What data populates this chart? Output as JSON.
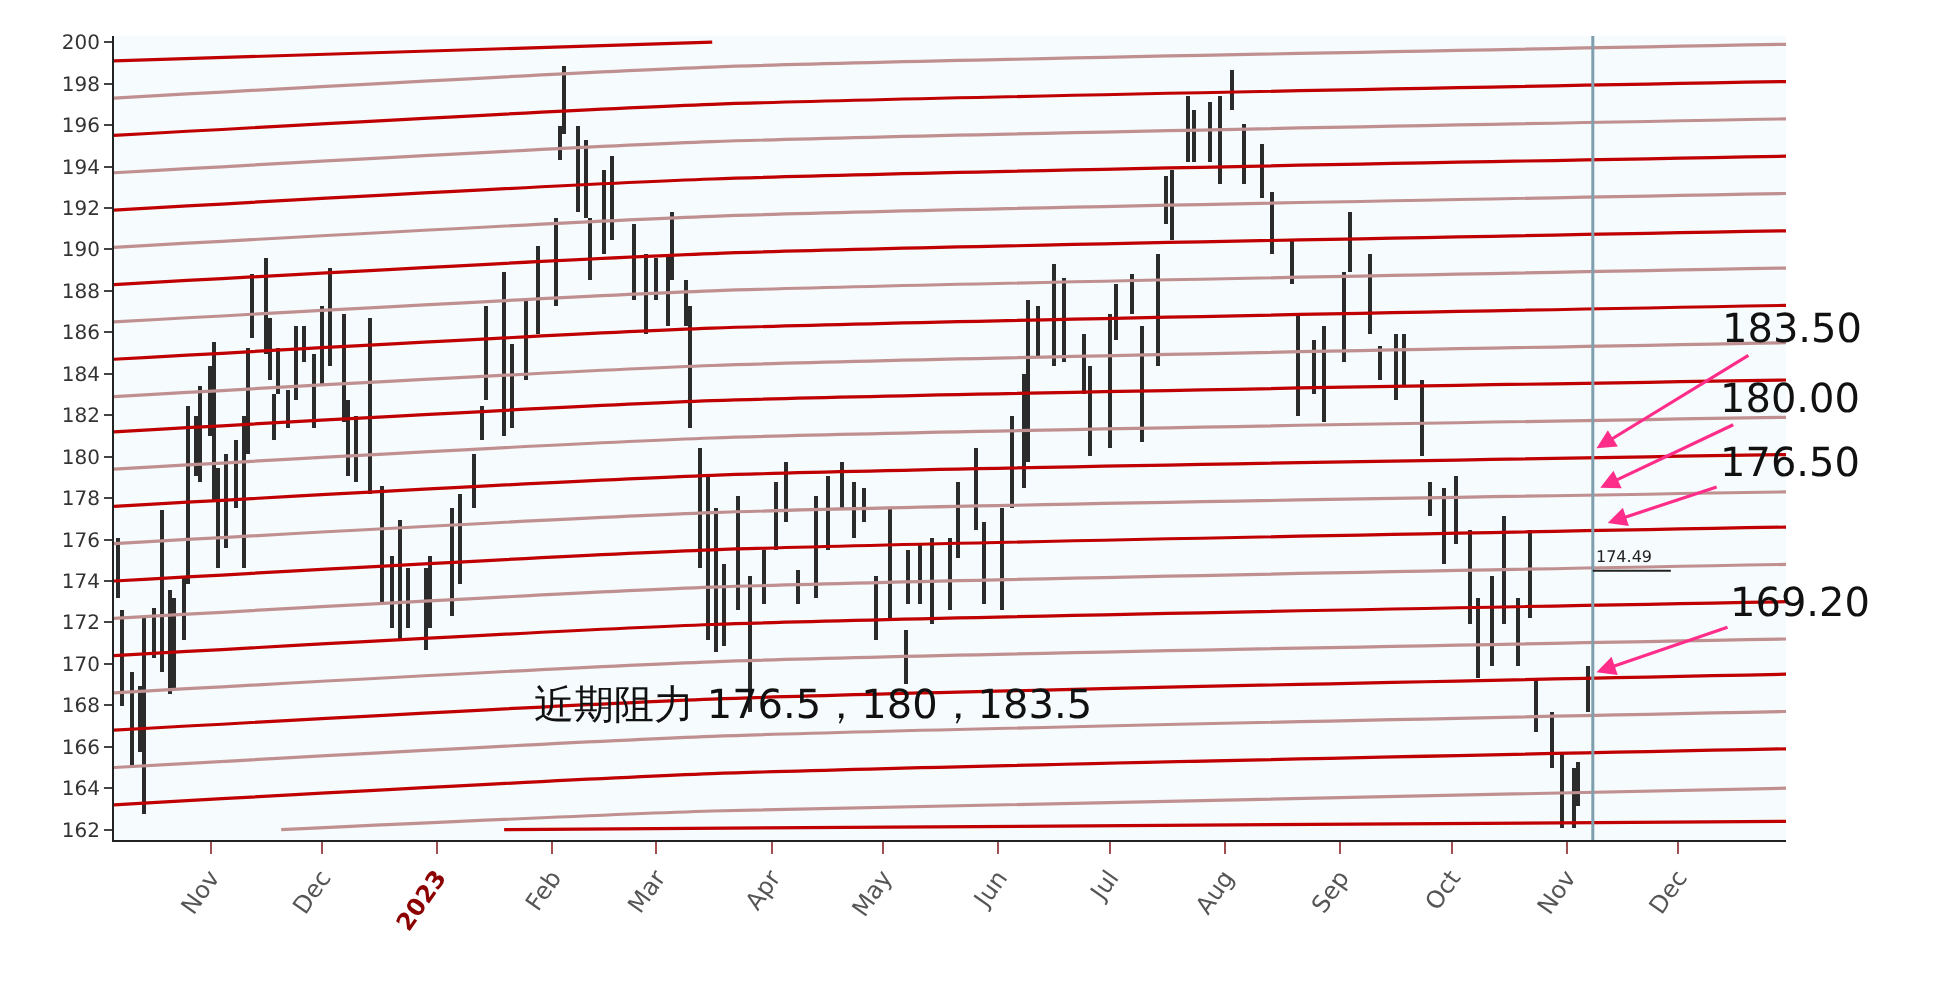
{
  "chart_data": {
    "type": "bar",
    "xlim": [
      "2022-10-06",
      "2023-12-30"
    ],
    "xticks": [
      {
        "value": "2022-11-01",
        "label": "Nov"
      },
      {
        "value": "2022-12-01",
        "label": "Dec"
      },
      {
        "value": "2023-01-01",
        "label": "2023"
      },
      {
        "value": "2023-02-01",
        "label": "Feb"
      },
      {
        "value": "2023-03-01",
        "label": "Mar"
      },
      {
        "value": "2023-04-01",
        "label": "Apr"
      },
      {
        "value": "2023-05-01",
        "label": "May"
      },
      {
        "value": "2023-06-01",
        "label": "Jun"
      },
      {
        "value": "2023-07-01",
        "label": "Jul"
      },
      {
        "value": "2023-08-01",
        "label": "Aug"
      },
      {
        "value": "2023-09-01",
        "label": "Sep"
      },
      {
        "value": "2023-10-01",
        "label": "Oct"
      },
      {
        "value": "2023-11-01",
        "label": "Nov"
      },
      {
        "value": "2023-12-01",
        "label": "Dec"
      }
    ],
    "ylim": [
      161.5,
      200.3
    ],
    "yticks": [
      162,
      164,
      166,
      168,
      170,
      172,
      174,
      176,
      178,
      180,
      182,
      184,
      186,
      188,
      190,
      192,
      194,
      196,
      198,
      200
    ],
    "series": [
      {
        "color": "#2b2b2b",
        "x": [
          "2022-10-07",
          "2022-10-08",
          "2022-10-11",
          "2022-10-13",
          "2022-10-14",
          "2022-10-17",
          "2022-10-19",
          "2022-10-21",
          "2022-10-22",
          "2022-10-25",
          "2022-10-26",
          "2022-10-28",
          "2022-10-29",
          "2022-11-01",
          "2022-11-02",
          "2022-11-03",
          "2022-11-05",
          "2022-11-08",
          "2022-11-10",
          "2022-11-11",
          "2022-11-12",
          "2022-11-16",
          "2022-11-17",
          "2022-11-18",
          "2022-11-19",
          "2022-11-22",
          "2022-11-24",
          "2022-11-26",
          "2022-11-29",
          "2022-12-01",
          "2022-12-03",
          "2022-12-07",
          "2022-12-08",
          "2022-12-10",
          "2022-12-14",
          "2022-12-17",
          "2022-12-20",
          "2022-12-22",
          "2022-12-24",
          "2022-12-29",
          "2022-12-30",
          "2023-01-05",
          "2023-01-07",
          "2023-01-11",
          "2023-01-13",
          "2023-01-14",
          "2023-01-19",
          "2023-01-21",
          "2023-01-25",
          "2023-01-28",
          "2023-02-02",
          "2023-02-03",
          "2023-02-04",
          "2023-02-08",
          "2023-02-10",
          "2023-02-11",
          "2023-02-15",
          "2023-02-17",
          "2023-02-23",
          "2023-02-26",
          "2023-03-01",
          "2023-03-04",
          "2023-03-05",
          "2023-03-09",
          "2023-03-10",
          "2023-03-13",
          "2023-03-15",
          "2023-03-17",
          "2023-03-19",
          "2023-03-23",
          "2023-03-26",
          "2023-03-30",
          "2023-04-02",
          "2023-04-05",
          "2023-04-08",
          "2023-04-13",
          "2023-04-16",
          "2023-04-20",
          "2023-04-23",
          "2023-04-26",
          "2023-04-29",
          "2023-05-03",
          "2023-05-07",
          "2023-05-08",
          "2023-05-11",
          "2023-05-14",
          "2023-05-19",
          "2023-05-21",
          "2023-05-26",
          "2023-05-28",
          "2023-06-02",
          "2023-06-05",
          "2023-06-08",
          "2023-06-09",
          "2023-06-12",
          "2023-06-16",
          "2023-06-19",
          "2023-06-24",
          "2023-06-26",
          "2023-07-01",
          "2023-07-03",
          "2023-07-07",
          "2023-07-10",
          "2023-07-14",
          "2023-07-16",
          "2023-07-18",
          "2023-07-22",
          "2023-07-24",
          "2023-07-28",
          "2023-07-31",
          "2023-08-03",
          "2023-08-06",
          "2023-08-11",
          "2023-08-14",
          "2023-08-19",
          "2023-08-21",
          "2023-08-25",
          "2023-08-28",
          "2023-09-02",
          "2023-09-04",
          "2023-09-09",
          "2023-09-12",
          "2023-09-16",
          "2023-09-18",
          "2023-09-23",
          "2023-09-25",
          "2023-09-29",
          "2023-10-02",
          "2023-10-06",
          "2023-10-08",
          "2023-10-12",
          "2023-10-15",
          "2023-10-19",
          "2023-10-22",
          "2023-10-24",
          "2023-10-28",
          "2023-10-31",
          "2023-11-03",
          "2023-11-04",
          "2023-11-07"
        ],
        "base": [
          173.2,
          168.0,
          165.0,
          165.7,
          162.8,
          170.3,
          169.6,
          168.5,
          168.7,
          171.2,
          173.9,
          179.1,
          178.8,
          181.0,
          177.8,
          174.6,
          175.6,
          177.5,
          174.6,
          180.1,
          185.7,
          185.0,
          183.7,
          180.8,
          183.0,
          181.4,
          182.7,
          184.6,
          181.4,
          183.4,
          184.4,
          181.7,
          179.1,
          178.8,
          178.2,
          173.0,
          171.7,
          171.2,
          171.7,
          170.7,
          171.7,
          172.3,
          173.9,
          177.5,
          180.8,
          182.7,
          181.0,
          181.4,
          183.7,
          185.9,
          187.3,
          194.3,
          195.6,
          191.8,
          191.5,
          188.5,
          189.8,
          190.5,
          187.6,
          185.9,
          187.6,
          186.3,
          188.5,
          186.3,
          181.4,
          174.6,
          171.2,
          170.6,
          170.9,
          172.6,
          167.7,
          172.9,
          175.5,
          176.8,
          172.9,
          173.2,
          175.5,
          177.5,
          176.1,
          176.8,
          171.2,
          172.2,
          169.0,
          172.9,
          172.9,
          171.9,
          172.6,
          175.1,
          176.5,
          172.9,
          172.6,
          177.5,
          178.5,
          179.7,
          184.9,
          184.4,
          184.6,
          183.0,
          180.0,
          180.4,
          185.6,
          186.9,
          180.7,
          184.4,
          191.2,
          190.5,
          194.2,
          194.2,
          194.2,
          193.2,
          196.7,
          193.2,
          192.5,
          189.8,
          188.3,
          182.0,
          183.0,
          181.7,
          184.6,
          188.9,
          185.9,
          183.7,
          182.7,
          183.4,
          180.0,
          177.1,
          174.8,
          175.8,
          171.9,
          169.3,
          169.9,
          171.9,
          169.9,
          172.2,
          166.7,
          165.0,
          162.1,
          162.1,
          163.1,
          167.7
        ],
        "values": [
          2.9,
          4.6,
          4.6,
          3.2,
          9.5,
          2.4,
          7.8,
          5.1,
          4.5,
          3.0,
          8.5,
          2.9,
          4.6,
          3.4,
          7.7,
          4.9,
          4.5,
          3.3,
          7.4,
          5.1,
          3.1,
          4.6,
          3.0,
          2.2,
          2.2,
          1.8,
          3.6,
          1.7,
          3.6,
          3.9,
          4.7,
          5.2,
          3.6,
          3.2,
          8.5,
          5.6,
          3.5,
          5.7,
          2.9,
          3.9,
          3.5,
          5.2,
          4.3,
          2.6,
          1.6,
          4.6,
          7.9,
          4.0,
          4.0,
          4.3,
          4.2,
          1.7,
          3.3,
          4.2,
          3.8,
          3.0,
          4.0,
          4.0,
          3.6,
          3.9,
          2.0,
          3.5,
          3.3,
          2.2,
          5.9,
          5.8,
          7.9,
          6.9,
          3.9,
          5.5,
          6.5,
          2.6,
          3.3,
          2.9,
          1.6,
          4.9,
          3.6,
          2.2,
          2.7,
          1.7,
          3.0,
          5.3,
          2.6,
          2.6,
          2.9,
          4.2,
          3.5,
          3.7,
          3.9,
          3.9,
          4.9,
          4.5,
          5.5,
          7.9,
          2.4,
          4.9,
          4.0,
          2.9,
          4.4,
          6.5,
          2.7,
          1.9,
          5.6,
          5.4,
          2.3,
          3.3,
          3.2,
          2.5,
          2.9,
          4.2,
          2.0,
          2.9,
          2.6,
          3.0,
          2.2,
          4.9,
          2.6,
          4.6,
          4.3,
          2.9,
          3.9,
          1.6,
          3.2,
          2.5,
          3.7,
          1.7,
          3.7,
          3.3,
          4.6,
          3.9,
          4.3,
          5.2,
          3.3,
          4.3,
          2.6,
          2.7,
          3.6,
          2.9,
          2.2,
          2.2
        ]
      },
      {
        "type": "line",
        "color": "#c00000",
        "x": [
          "2022-10-06",
          "2023-03-16"
        ],
        "values": [
          199.1,
          200.0
        ]
      },
      {
        "type": "line",
        "color": "#c09090",
        "x": [
          "2022-10-06",
          "2023-03-16",
          "2023-12-30"
        ],
        "values": [
          197.3,
          198.8,
          199.9
        ]
      },
      {
        "type": "line",
        "color": "#c00000",
        "x": [
          "2022-10-06",
          "2023-03-16",
          "2023-12-30"
        ],
        "values": [
          195.5,
          197.0,
          198.1
        ]
      },
      {
        "type": "line",
        "color": "#c09090",
        "x": [
          "2022-10-06",
          "2023-03-16",
          "2023-12-30"
        ],
        "values": [
          193.7,
          195.2,
          196.3
        ]
      },
      {
        "type": "line",
        "color": "#c00000",
        "x": [
          "2022-10-06",
          "2023-03-16",
          "2023-12-30"
        ],
        "values": [
          191.9,
          193.4,
          194.5
        ]
      },
      {
        "type": "line",
        "color": "#c09090",
        "x": [
          "2022-10-06",
          "2023-03-16",
          "2023-12-30"
        ],
        "values": [
          190.1,
          191.6,
          192.7
        ]
      },
      {
        "type": "line",
        "color": "#c00000",
        "x": [
          "2022-10-06",
          "2023-03-16",
          "2023-12-30"
        ],
        "values": [
          188.3,
          189.8,
          190.9
        ]
      },
      {
        "type": "line",
        "color": "#c09090",
        "x": [
          "2022-10-06",
          "2023-03-16",
          "2023-12-30"
        ],
        "values": [
          186.5,
          188.0,
          189.1
        ]
      },
      {
        "type": "line",
        "color": "#c00000",
        "x": [
          "2022-10-06",
          "2023-03-16",
          "2023-12-30"
        ],
        "values": [
          184.7,
          186.2,
          187.3
        ]
      },
      {
        "type": "line",
        "color": "#c09090",
        "x": [
          "2022-10-06",
          "2023-03-16",
          "2023-12-30"
        ],
        "values": [
          182.9,
          184.4,
          185.5
        ]
      },
      {
        "type": "line",
        "color": "#c00000",
        "x": [
          "2022-10-06",
          "2023-03-16",
          "2023-12-30"
        ],
        "values": [
          181.2,
          182.7,
          183.7
        ]
      },
      {
        "type": "line",
        "color": "#c09090",
        "x": [
          "2022-10-06",
          "2023-03-16",
          "2023-12-30"
        ],
        "values": [
          179.4,
          180.9,
          181.9
        ]
      },
      {
        "type": "line",
        "color": "#c00000",
        "x": [
          "2022-10-06",
          "2023-03-16",
          "2023-12-30"
        ],
        "values": [
          177.6,
          179.1,
          180.1
        ]
      },
      {
        "type": "line",
        "color": "#c09090",
        "x": [
          "2022-10-06",
          "2023-03-16",
          "2023-12-30"
        ],
        "values": [
          175.8,
          177.3,
          178.3
        ]
      },
      {
        "type": "line",
        "color": "#c00000",
        "x": [
          "2022-10-06",
          "2023-03-16",
          "2023-12-30"
        ],
        "values": [
          174.0,
          175.5,
          176.6
        ]
      },
      {
        "type": "line",
        "color": "#c09090",
        "x": [
          "2022-10-06",
          "2023-03-16",
          "2023-12-30"
        ],
        "values": [
          172.2,
          173.7,
          174.8
        ]
      },
      {
        "type": "line",
        "color": "#c00000",
        "x": [
          "2022-10-06",
          "2023-03-16",
          "2023-12-30"
        ],
        "values": [
          170.4,
          171.9,
          173.0
        ]
      },
      {
        "type": "line",
        "color": "#c09090",
        "x": [
          "2022-10-06",
          "2023-03-16",
          "2023-12-30"
        ],
        "values": [
          168.6,
          170.1,
          171.2
        ]
      },
      {
        "type": "line",
        "color": "#c00000",
        "x": [
          "2022-10-06",
          "2023-03-16",
          "2023-12-30"
        ],
        "values": [
          166.8,
          168.3,
          169.5
        ]
      },
      {
        "type": "line",
        "color": "#c09090",
        "x": [
          "2022-10-06",
          "2023-03-16",
          "2023-12-30"
        ],
        "values": [
          165.0,
          166.5,
          167.7
        ]
      },
      {
        "type": "line",
        "color": "#c00000",
        "x": [
          "2022-10-06",
          "2023-03-16",
          "2023-12-30"
        ],
        "values": [
          163.2,
          164.7,
          165.9
        ]
      },
      {
        "type": "line",
        "color": "#c09090",
        "x": [
          "2022-11-20",
          "2023-03-16",
          "2023-12-30"
        ],
        "values": [
          162.0,
          162.9,
          164.0
        ]
      },
      {
        "type": "line",
        "color": "#c00000",
        "x": [
          "2023-01-19",
          "2023-12-30"
        ],
        "values": [
          162.0,
          162.4
        ]
      }
    ],
    "ref_lines": [
      {
        "axis": "x",
        "value": "2023-11-08",
        "color": "#7f9fae"
      }
    ],
    "annotations": [
      {
        "text": "183.50",
        "x": "2023-11-09",
        "y": 180.4
      },
      {
        "text": "180.00",
        "x": "2023-11-10",
        "y": 178.5
      },
      {
        "text": "176.50",
        "x": "2023-11-12",
        "y": 176.8
      },
      {
        "text": "169.20",
        "x": "2023-11-09",
        "y": 169.6
      },
      {
        "text": "174.49",
        "x": "2023-11-08",
        "y": 174.49
      },
      "近期阻力 176.5，180，183.5"
    ]
  }
}
